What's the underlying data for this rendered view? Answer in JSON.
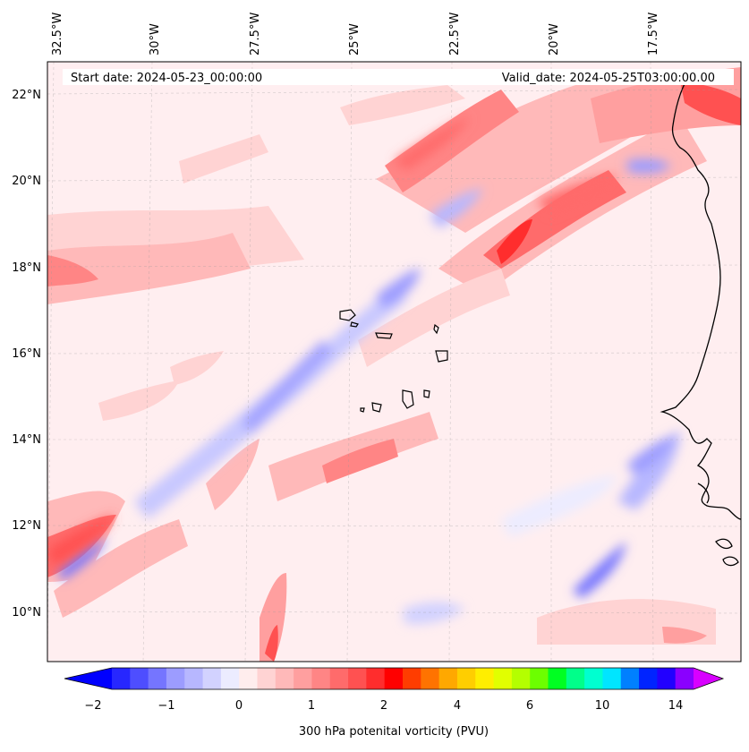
{
  "header": {
    "start_date": "Start date: 2024-05-23_00:00:00",
    "valid_date": "Valid_date: 2024-05-25T03:00:00.00"
  },
  "map": {
    "lon_labels": [
      "32.5°W",
      "30°W",
      "27.5°W",
      "25°W",
      "22.5°W",
      "20°W",
      "17.5°W"
    ],
    "lat_labels": [
      "22°N",
      "20°N",
      "18°N",
      "16°N",
      "14°N",
      "12°N",
      "10°N"
    ],
    "background_color": "#f2f2ff",
    "coast_color": "#000000"
  },
  "colorbar": {
    "label": "300 hPa potenital vorticity (PVU)",
    "tick_labels": [
      "−2",
      "−1",
      "0",
      "1",
      "2",
      "4",
      "6",
      "10",
      "14"
    ],
    "colors": [
      "#0000ff",
      "#2727ff",
      "#4e4eff",
      "#7575ff",
      "#9c9cff",
      "#b7b7ff",
      "#d2d2ff",
      "#ececff",
      "#ffeded",
      "#ffd3d3",
      "#ffb9b9",
      "#ff9f9f",
      "#ff8585",
      "#ff6b6b",
      "#ff5151",
      "#ff2d2d",
      "#ff0000",
      "#ff3d00",
      "#ff7300",
      "#ffa800",
      "#ffce00",
      "#ffee00",
      "#e1ff00",
      "#b4ff00",
      "#6cff00",
      "#00ff22",
      "#00ff8a",
      "#00ffd0",
      "#00e5ff",
      "#0080ff",
      "#0024ff",
      "#2200ff",
      "#8a00ff",
      "#d800ff"
    ]
  }
}
